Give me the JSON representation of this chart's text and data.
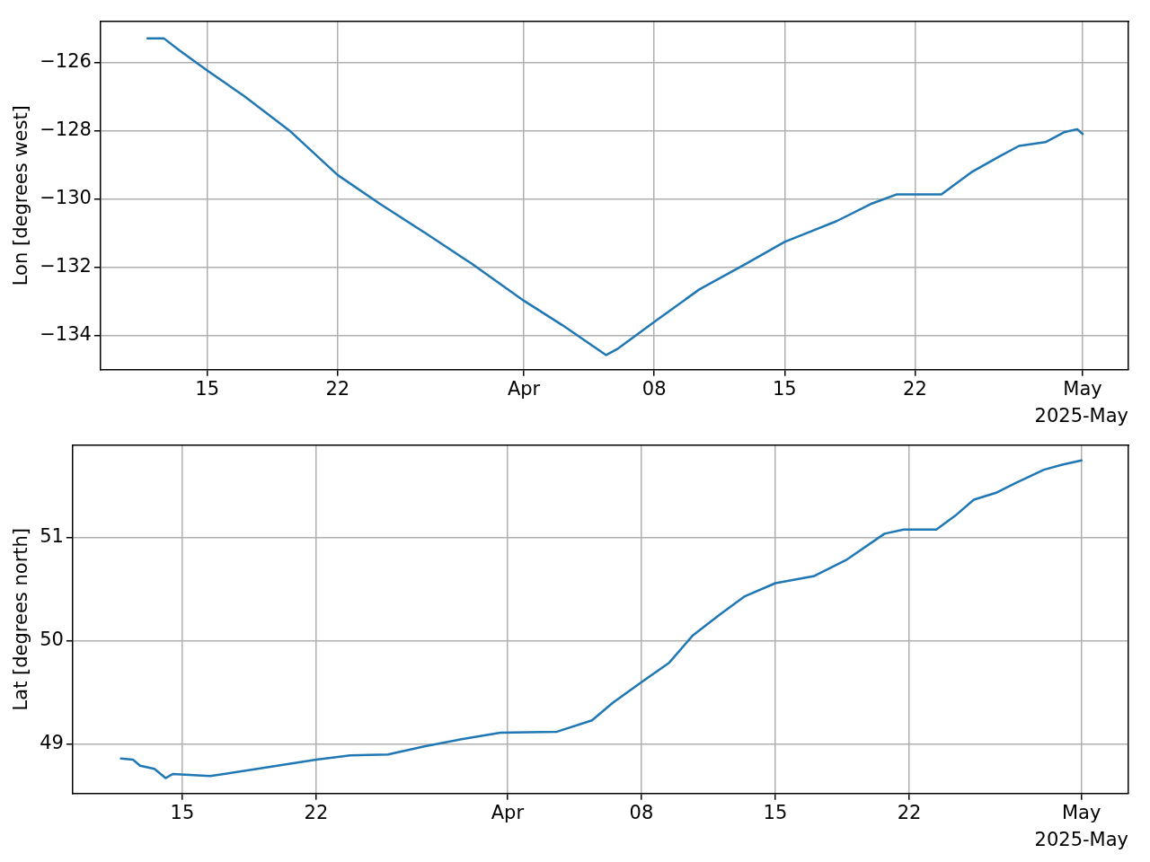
{
  "chart_data": [
    {
      "type": "line",
      "ylabel": "Lon [degrees west]",
      "xlim": [
        "2025-03-09T06:30",
        "2025-05-03T11:00"
      ],
      "xticks": [
        {
          "value": "2025-03-15",
          "label": "15"
        },
        {
          "value": "2025-03-22",
          "label": "22"
        },
        {
          "value": "2025-04-01",
          "label": "Apr"
        },
        {
          "value": "2025-04-08",
          "label": "08"
        },
        {
          "value": "2025-04-15",
          "label": "15"
        },
        {
          "value": "2025-04-22",
          "label": "22"
        },
        {
          "value": "2025-05-01",
          "label": "May"
        }
      ],
      "ylim": [
        -135,
        -124.8
      ],
      "yticks": [
        {
          "value": -134,
          "label": "−134"
        },
        {
          "value": -132,
          "label": "−132"
        },
        {
          "value": -130,
          "label": "−130"
        },
        {
          "value": -128,
          "label": "−128"
        },
        {
          "value": -126,
          "label": "−126"
        }
      ],
      "grid": true,
      "legend": false,
      "marker": "none",
      "line_style": "solid",
      "annotations": [
        "2025-May"
      ],
      "x": [
        "2025-03-11T19:00",
        "2025-03-12T16:00",
        "2025-03-13T12:00",
        "2025-03-15",
        "2025-03-17",
        "2025-03-19T10:00",
        "2025-03-22",
        "2025-03-24T07:00",
        "2025-03-26T17:00",
        "2025-03-29T05:00",
        "2025-04-01",
        "2025-04-03T02:00",
        "2025-04-05T10:00",
        "2025-04-06",
        "2025-04-08",
        "2025-04-10T10:00",
        "2025-04-12T22:00",
        "2025-04-15",
        "2025-04-17T19:00",
        "2025-04-19T17:00",
        "2025-04-21",
        "2025-04-23T10:00",
        "2025-04-25T02:00",
        "2025-04-26T14:00",
        "2025-04-27T14:00",
        "2025-04-29",
        "2025-04-30",
        "2025-04-30T17:00",
        "2025-05-01"
      ],
      "series": [
        {
          "color": "#1f77b4",
          "values": [
            -125.3,
            -125.3,
            -125.65,
            -126.24,
            -127.0,
            -128.0,
            -129.3,
            -130.15,
            -131.0,
            -131.9,
            -132.98,
            -133.7,
            -134.57,
            -134.4,
            -133.6,
            -132.65,
            -131.9,
            -131.26,
            -130.65,
            -130.13,
            -129.87,
            -129.87,
            -129.2,
            -128.74,
            -128.45,
            -128.34,
            -128.05,
            -127.96,
            -128.1
          ]
        }
      ]
    },
    {
      "type": "line",
      "ylabel": "Lat [degrees north]",
      "xlim": [
        "2025-03-09T06:30",
        "2025-05-03T11:00"
      ],
      "xticks": [
        {
          "value": "2025-03-15",
          "label": "15"
        },
        {
          "value": "2025-03-22",
          "label": "22"
        },
        {
          "value": "2025-04-01",
          "label": "Apr"
        },
        {
          "value": "2025-04-08",
          "label": "08"
        },
        {
          "value": "2025-04-15",
          "label": "15"
        },
        {
          "value": "2025-04-22",
          "label": "22"
        },
        {
          "value": "2025-05-01",
          "label": "May"
        }
      ],
      "ylim": [
        48.52,
        51.9
      ],
      "yticks": [
        49,
        50,
        51
      ],
      "grid": true,
      "legend": false,
      "marker": "none",
      "line_style": "solid",
      "annotations": [
        "2025-May"
      ],
      "x": [
        "2025-03-11T19:00",
        "2025-03-12T10:00",
        "2025-03-12T19:00",
        "2025-03-13T13:00",
        "2025-03-14T03:00",
        "2025-03-14T12:00",
        "2025-03-16T11:00",
        "2025-03-18T22:00",
        "2025-03-22",
        "2025-03-23T19:00",
        "2025-03-25T18:00",
        "2025-03-27T17:00",
        "2025-03-29T16:00",
        "2025-03-31T15:00",
        "2025-04-03T14:00",
        "2025-04-05T10:00",
        "2025-04-06T12:00",
        "2025-04-08",
        "2025-04-09T11:00",
        "2025-04-10T16:00",
        "2025-04-12T03:00",
        "2025-04-13T09:00",
        "2025-04-15",
        "2025-04-17T01:00",
        "2025-04-18T18:00",
        "2025-04-20T17:00",
        "2025-04-21T17:00",
        "2025-04-23T10:00",
        "2025-04-24T09:00",
        "2025-04-25T09:00",
        "2025-04-26T14:00",
        "2025-04-27T13:00",
        "2025-04-29T01:00",
        "2025-04-30",
        "2025-05-01"
      ],
      "series": [
        {
          "color": "#1f77b4",
          "values": [
            48.86,
            48.85,
            48.79,
            48.76,
            48.67,
            48.71,
            48.69,
            48.76,
            48.85,
            48.89,
            48.9,
            48.98,
            49.05,
            49.11,
            49.12,
            49.23,
            49.4,
            49.6,
            49.79,
            50.05,
            50.26,
            50.43,
            50.56,
            50.63,
            50.79,
            51.04,
            51.08,
            51.08,
            51.21,
            51.37,
            51.44,
            51.53,
            51.66,
            51.71,
            51.75
          ]
        }
      ]
    }
  ]
}
